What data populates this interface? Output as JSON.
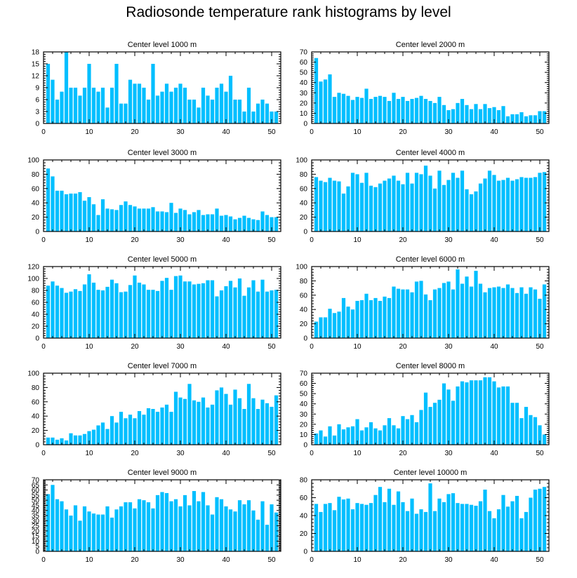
{
  "title": "Radiosonde temperature rank histograms by level",
  "bar_color": "#00bfff",
  "chart_data": [
    {
      "type": "bar",
      "title": "Center level 1000 m",
      "xlim": [
        0,
        52
      ],
      "xticks": [
        0,
        10,
        20,
        30,
        40,
        50
      ],
      "ylim": [
        0,
        18
      ],
      "yticks": [
        0,
        3,
        6,
        9,
        12,
        15,
        18
      ],
      "categories": [
        1,
        2,
        3,
        4,
        5,
        6,
        7,
        8,
        9,
        10,
        11,
        12,
        13,
        14,
        15,
        16,
        17,
        18,
        19,
        20,
        21,
        22,
        23,
        24,
        25,
        26,
        27,
        28,
        29,
        30,
        31,
        32,
        33,
        34,
        35,
        36,
        37,
        38,
        39,
        40,
        41,
        42,
        43,
        44,
        45,
        46,
        47,
        48,
        49,
        50,
        51
      ],
      "values": [
        15,
        11,
        6,
        8,
        18,
        9,
        9,
        7,
        9,
        15,
        9,
        8,
        9,
        4,
        9,
        15,
        5,
        5,
        11,
        10,
        10,
        9,
        6,
        15,
        7,
        8,
        10,
        8,
        9,
        10,
        9,
        6,
        6,
        4,
        9,
        7,
        6,
        9,
        10,
        8,
        12,
        6,
        6,
        3,
        9,
        3,
        5,
        6,
        5,
        3,
        3
      ]
    },
    {
      "type": "bar",
      "title": "Center level 2000 m",
      "xlim": [
        0,
        52
      ],
      "xticks": [
        0,
        10,
        20,
        30,
        40,
        50
      ],
      "ylim": [
        0,
        70
      ],
      "yticks": [
        0,
        10,
        20,
        30,
        40,
        50,
        60,
        70
      ],
      "categories": [
        1,
        2,
        3,
        4,
        5,
        6,
        7,
        8,
        9,
        10,
        11,
        12,
        13,
        14,
        15,
        16,
        17,
        18,
        19,
        20,
        21,
        22,
        23,
        24,
        25,
        26,
        27,
        28,
        29,
        30,
        31,
        32,
        33,
        34,
        35,
        36,
        37,
        38,
        39,
        40,
        41,
        42,
        43,
        44,
        45,
        46,
        47,
        48,
        49,
        50,
        51
      ],
      "values": [
        64,
        41,
        43,
        48,
        26,
        30,
        29,
        27,
        23,
        26,
        25,
        34,
        24,
        26,
        27,
        26,
        22,
        30,
        24,
        26,
        22,
        24,
        25,
        27,
        24,
        22,
        20,
        26,
        18,
        13,
        14,
        20,
        24,
        18,
        14,
        19,
        14,
        19,
        15,
        16,
        13,
        17,
        7,
        9,
        9,
        11,
        7,
        8,
        8,
        12,
        12
      ]
    },
    {
      "type": "bar",
      "title": "Center level 3000 m",
      "xlim": [
        0,
        52
      ],
      "xticks": [
        0,
        10,
        20,
        30,
        40,
        50
      ],
      "ylim": [
        0,
        100
      ],
      "yticks": [
        0,
        20,
        40,
        60,
        80,
        100
      ],
      "categories": [
        1,
        2,
        3,
        4,
        5,
        6,
        7,
        8,
        9,
        10,
        11,
        12,
        13,
        14,
        15,
        16,
        17,
        18,
        19,
        20,
        21,
        22,
        23,
        24,
        25,
        26,
        27,
        28,
        29,
        30,
        31,
        32,
        33,
        34,
        35,
        36,
        37,
        38,
        39,
        40,
        41,
        42,
        43,
        44,
        45,
        46,
        47,
        48,
        49,
        50,
        51
      ],
      "values": [
        88,
        77,
        57,
        57,
        52,
        53,
        53,
        55,
        43,
        48,
        38,
        23,
        45,
        32,
        31,
        30,
        37,
        42,
        37,
        35,
        32,
        32,
        32,
        34,
        28,
        28,
        27,
        40,
        26,
        32,
        30,
        24,
        27,
        30,
        23,
        24,
        24,
        32,
        22,
        23,
        21,
        17,
        19,
        22,
        19,
        17,
        16,
        28,
        23,
        20,
        20
      ]
    },
    {
      "type": "bar",
      "title": "Center level 4000 m",
      "xlim": [
        0,
        52
      ],
      "xticks": [
        0,
        10,
        20,
        30,
        40,
        50
      ],
      "ylim": [
        0,
        100
      ],
      "yticks": [
        0,
        20,
        40,
        60,
        80,
        100
      ],
      "categories": [
        1,
        2,
        3,
        4,
        5,
        6,
        7,
        8,
        9,
        10,
        11,
        12,
        13,
        14,
        15,
        16,
        17,
        18,
        19,
        20,
        21,
        22,
        23,
        24,
        25,
        26,
        27,
        28,
        29,
        30,
        31,
        32,
        33,
        34,
        35,
        36,
        37,
        38,
        39,
        40,
        41,
        42,
        43,
        44,
        45,
        46,
        47,
        48,
        49,
        50,
        51
      ],
      "values": [
        76,
        71,
        69,
        75,
        71,
        70,
        53,
        63,
        82,
        80,
        68,
        82,
        64,
        62,
        67,
        71,
        74,
        78,
        71,
        66,
        82,
        67,
        82,
        80,
        92,
        78,
        60,
        85,
        65,
        72,
        82,
        75,
        85,
        59,
        52,
        56,
        67,
        74,
        85,
        79,
        71,
        72,
        75,
        71,
        73,
        76,
        75,
        75,
        76,
        82,
        83
      ]
    },
    {
      "type": "bar",
      "title": "Center level 5000 m",
      "xlim": [
        0,
        52
      ],
      "xticks": [
        0,
        10,
        20,
        30,
        40,
        50
      ],
      "ylim": [
        0,
        120
      ],
      "yticks": [
        0,
        20,
        40,
        60,
        80,
        100,
        120
      ],
      "categories": [
        1,
        2,
        3,
        4,
        5,
        6,
        7,
        8,
        9,
        10,
        11,
        12,
        13,
        14,
        15,
        16,
        17,
        18,
        19,
        20,
        21,
        22,
        23,
        24,
        25,
        26,
        27,
        28,
        29,
        30,
        31,
        32,
        33,
        34,
        35,
        36,
        37,
        38,
        39,
        40,
        41,
        42,
        43,
        44,
        45,
        46,
        47,
        48,
        49,
        50,
        51
      ],
      "values": [
        88,
        95,
        88,
        84,
        76,
        78,
        82,
        79,
        90,
        107,
        93,
        81,
        80,
        86,
        98,
        92,
        77,
        78,
        89,
        105,
        93,
        90,
        81,
        81,
        79,
        96,
        101,
        81,
        104,
        105,
        95,
        95,
        90,
        91,
        92,
        97,
        97,
        70,
        80,
        87,
        96,
        85,
        100,
        71,
        85,
        97,
        78,
        98,
        78,
        80,
        81
      ]
    },
    {
      "type": "bar",
      "title": "Center level 6000 m",
      "xlim": [
        0,
        52
      ],
      "xticks": [
        0,
        10,
        20,
        30,
        40,
        50
      ],
      "ylim": [
        0,
        100
      ],
      "yticks": [
        0,
        20,
        40,
        60,
        80,
        100
      ],
      "categories": [
        1,
        2,
        3,
        4,
        5,
        6,
        7,
        8,
        9,
        10,
        11,
        12,
        13,
        14,
        15,
        16,
        17,
        18,
        19,
        20,
        21,
        22,
        23,
        24,
        25,
        26,
        27,
        28,
        29,
        30,
        31,
        32,
        33,
        34,
        35,
        36,
        37,
        38,
        39,
        40,
        41,
        42,
        43,
        44,
        45,
        46,
        47,
        48,
        49,
        50,
        51
      ],
      "values": [
        23,
        29,
        29,
        41,
        35,
        37,
        56,
        44,
        40,
        52,
        53,
        62,
        53,
        56,
        52,
        58,
        56,
        72,
        69,
        68,
        68,
        64,
        79,
        80,
        61,
        53,
        68,
        70,
        77,
        79,
        68,
        96,
        76,
        86,
        72,
        94,
        76,
        64,
        70,
        71,
        72,
        70,
        75,
        70,
        63,
        71,
        62,
        71,
        68,
        55,
        75
      ]
    },
    {
      "type": "bar",
      "title": "Center level 7000 m",
      "xlim": [
        0,
        52
      ],
      "xticks": [
        0,
        10,
        20,
        30,
        40,
        50
      ],
      "ylim": [
        0,
        100
      ],
      "yticks": [
        0,
        20,
        40,
        60,
        80,
        100
      ],
      "categories": [
        1,
        2,
        3,
        4,
        5,
        6,
        7,
        8,
        9,
        10,
        11,
        12,
        13,
        14,
        15,
        16,
        17,
        18,
        19,
        20,
        21,
        22,
        23,
        24,
        25,
        26,
        27,
        28,
        29,
        30,
        31,
        32,
        33,
        34,
        35,
        36,
        37,
        38,
        39,
        40,
        41,
        42,
        43,
        44,
        45,
        46,
        47,
        48,
        49,
        50,
        51
      ],
      "values": [
        10,
        10,
        7,
        9,
        6,
        16,
        13,
        13,
        15,
        19,
        21,
        27,
        31,
        22,
        40,
        31,
        46,
        37,
        42,
        37,
        47,
        42,
        51,
        50,
        46,
        52,
        56,
        46,
        74,
        66,
        64,
        85,
        62,
        60,
        66,
        52,
        56,
        76,
        80,
        71,
        56,
        77,
        65,
        50,
        85,
        65,
        50,
        63,
        58,
        53,
        69
      ]
    },
    {
      "type": "bar",
      "title": "Center level 8000 m",
      "xlim": [
        0,
        52
      ],
      "xticks": [
        0,
        10,
        20,
        30,
        40,
        50
      ],
      "ylim": [
        0,
        70
      ],
      "yticks": [
        0,
        10,
        20,
        30,
        40,
        50,
        60,
        70
      ],
      "categories": [
        1,
        2,
        3,
        4,
        5,
        6,
        7,
        8,
        9,
        10,
        11,
        12,
        13,
        14,
        15,
        16,
        17,
        18,
        19,
        20,
        21,
        22,
        23,
        24,
        25,
        26,
        27,
        28,
        29,
        30,
        31,
        32,
        33,
        34,
        35,
        36,
        37,
        38,
        39,
        40,
        41,
        42,
        43,
        44,
        45,
        46,
        47,
        48,
        49,
        50,
        51
      ],
      "values": [
        11,
        14,
        8,
        18,
        9,
        20,
        15,
        17,
        18,
        25,
        14,
        17,
        22,
        16,
        14,
        19,
        26,
        19,
        16,
        28,
        25,
        29,
        22,
        34,
        51,
        37,
        41,
        44,
        60,
        54,
        43,
        57,
        62,
        61,
        63,
        63,
        63,
        66,
        66,
        62,
        56,
        57,
        57,
        41,
        41,
        26,
        37,
        29,
        27,
        19,
        10
      ]
    },
    {
      "type": "bar",
      "title": "Center level 9000 m",
      "xlim": [
        0,
        52
      ],
      "xticks": [
        0,
        10,
        20,
        30,
        40,
        50
      ],
      "ylim": [
        0,
        70
      ],
      "yticks": [
        0,
        5,
        10,
        15,
        20,
        25,
        30,
        35,
        40,
        45,
        50,
        55,
        60,
        65,
        70
      ],
      "categories": [
        1,
        2,
        3,
        4,
        5,
        6,
        7,
        8,
        9,
        10,
        11,
        12,
        13,
        14,
        15,
        16,
        17,
        18,
        19,
        20,
        21,
        22,
        23,
        24,
        25,
        26,
        27,
        28,
        29,
        30,
        31,
        32,
        33,
        34,
        35,
        36,
        37,
        38,
        39,
        40,
        41,
        42,
        43,
        44,
        45,
        46,
        47,
        48,
        49,
        50,
        51
      ],
      "values": [
        56,
        65,
        51,
        49,
        41,
        35,
        45,
        30,
        44,
        39,
        37,
        36,
        36,
        44,
        33,
        41,
        44,
        48,
        48,
        42,
        51,
        50,
        48,
        42,
        55,
        58,
        57,
        49,
        51,
        44,
        55,
        45,
        59,
        49,
        58,
        45,
        36,
        53,
        51,
        44,
        41,
        39,
        50,
        46,
        50,
        40,
        31,
        49,
        26,
        46,
        38
      ]
    },
    {
      "type": "bar",
      "title": "Center level 10000 m",
      "xlim": [
        0,
        52
      ],
      "xticks": [
        0,
        10,
        20,
        30,
        40,
        50
      ],
      "ylim": [
        0,
        80
      ],
      "yticks": [
        0,
        20,
        40,
        60,
        80
      ],
      "categories": [
        1,
        2,
        3,
        4,
        5,
        6,
        7,
        8,
        9,
        10,
        11,
        12,
        13,
        14,
        15,
        16,
        17,
        18,
        19,
        20,
        21,
        22,
        23,
        24,
        25,
        26,
        27,
        28,
        29,
        30,
        31,
        32,
        33,
        34,
        35,
        36,
        37,
        38,
        39,
        40,
        41,
        42,
        43,
        44,
        45,
        46,
        47,
        48,
        49,
        50,
        51
      ],
      "values": [
        53,
        44,
        53,
        54,
        46,
        61,
        58,
        59,
        47,
        54,
        53,
        52,
        54,
        63,
        72,
        55,
        70,
        52,
        67,
        55,
        45,
        59,
        42,
        47,
        44,
        76,
        45,
        59,
        55,
        64,
        65,
        54,
        53,
        53,
        52,
        51,
        56,
        69,
        45,
        37,
        47,
        63,
        50,
        56,
        62,
        37,
        44,
        60,
        69,
        70,
        72
      ]
    }
  ]
}
